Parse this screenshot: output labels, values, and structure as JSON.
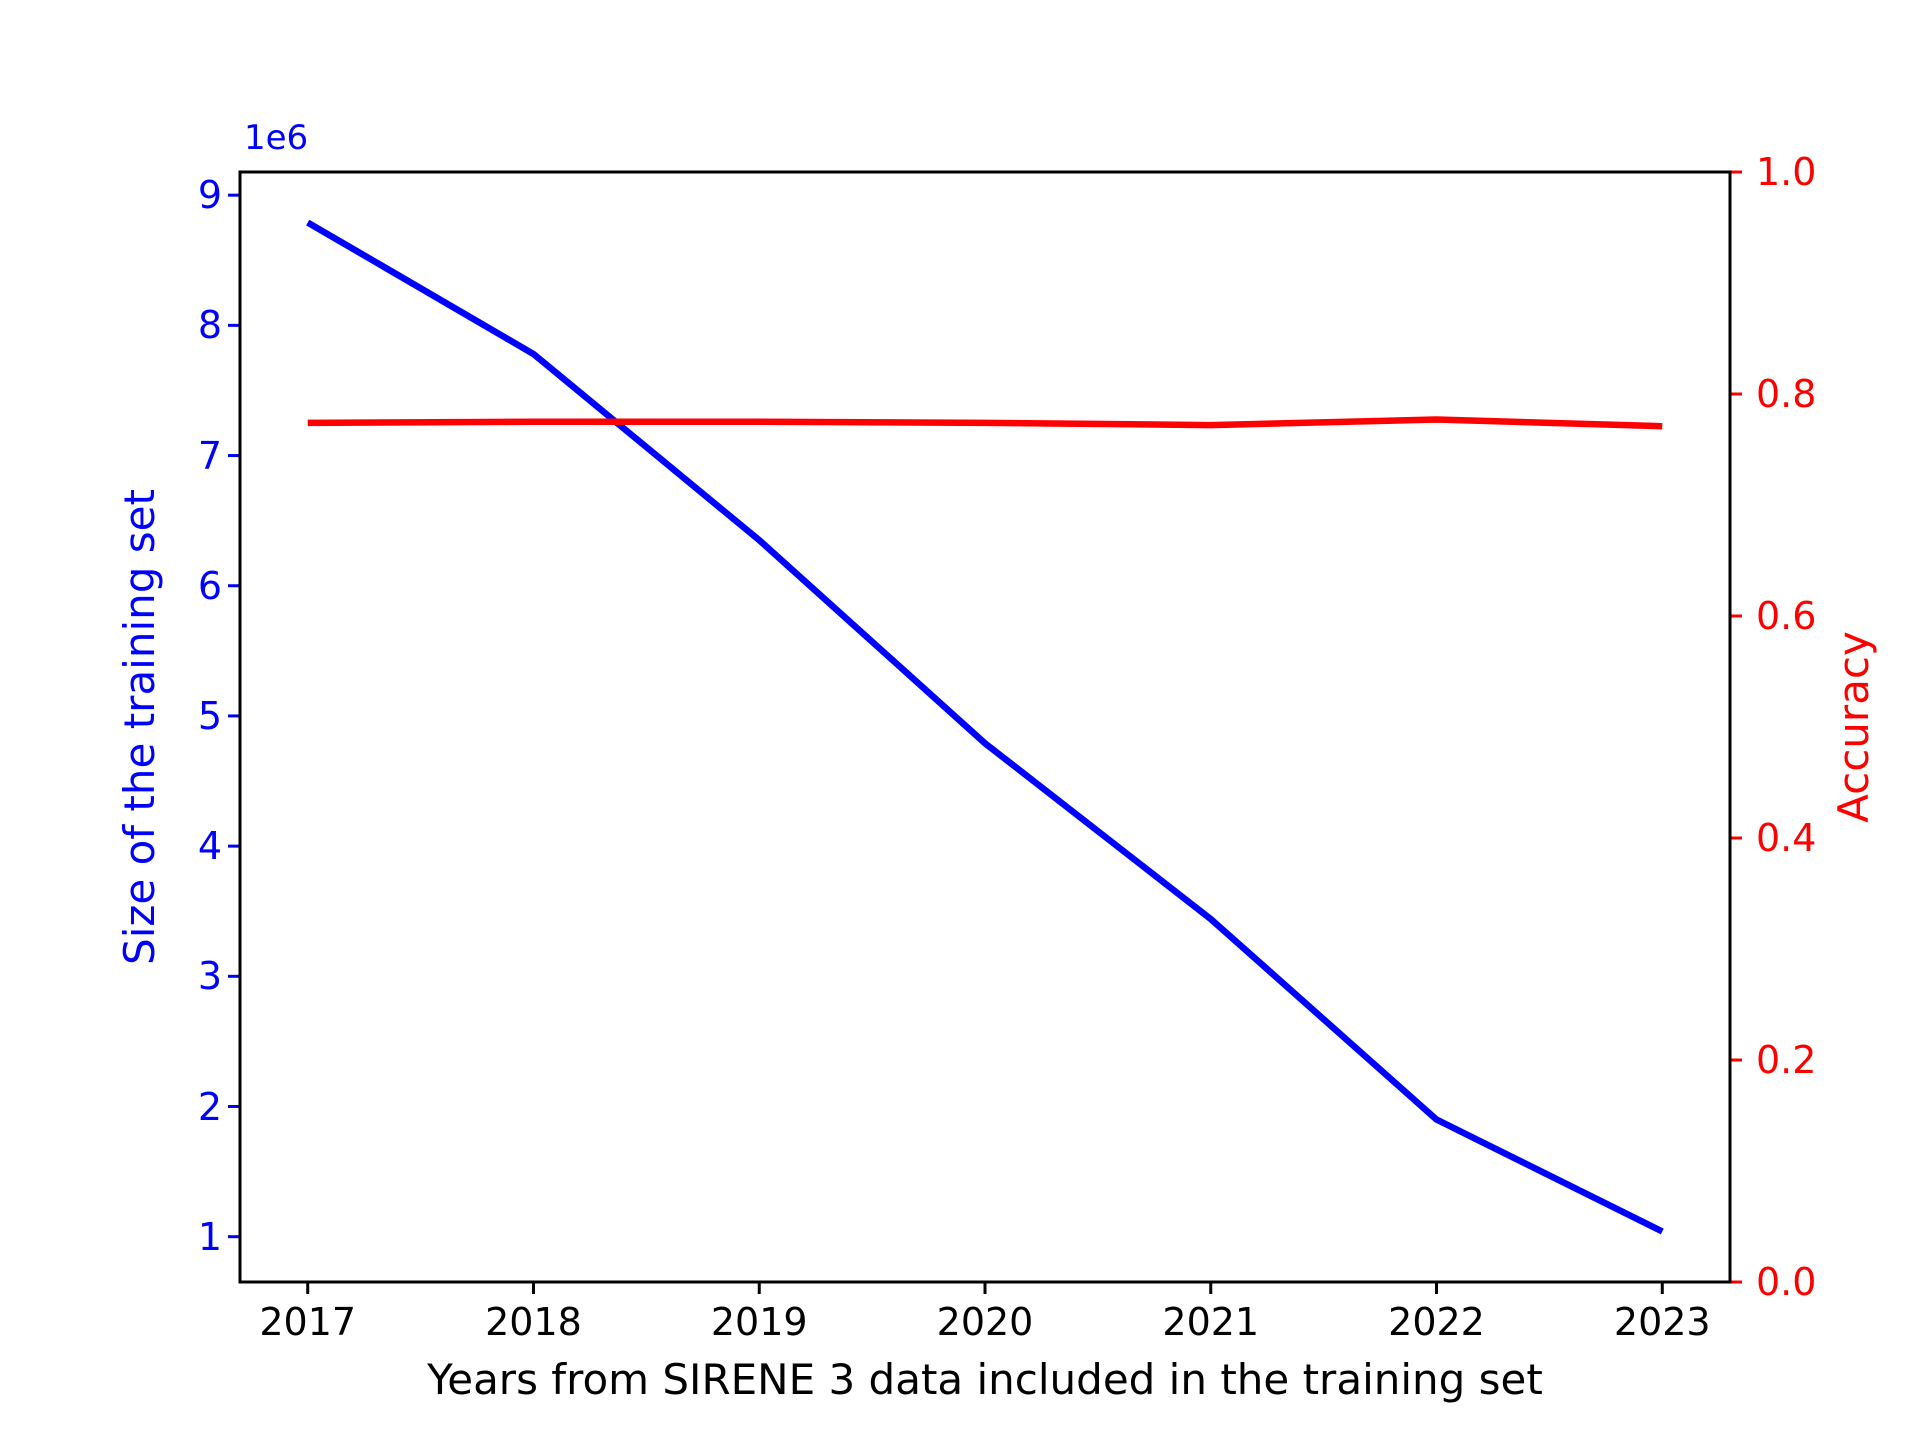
{
  "chart_data": {
    "type": "line",
    "x": [
      2017,
      2018,
      2019,
      2020,
      2021,
      2022,
      2023
    ],
    "series": [
      {
        "name": "Size of the training set",
        "axis": "left",
        "color": "#0000ff",
        "values": [
          8790000,
          7780000,
          6350000,
          4790000,
          3440000,
          1900000,
          1040000
        ]
      },
      {
        "name": "Accuracy",
        "axis": "right",
        "color": "#ff0000",
        "values": [
          0.774,
          0.775,
          0.775,
          0.774,
          0.772,
          0.777,
          0.771
        ]
      }
    ],
    "xlabel": "Years from SIRENE 3 data included in the training set",
    "ylabel_left": "Size of the training set",
    "ylabel_right": "Accuracy",
    "offset_text": "1e6",
    "x_ticks": {
      "values": [
        2017,
        2018,
        2019,
        2020,
        2021,
        2022,
        2023
      ],
      "labels": [
        "2017",
        "2018",
        "2019",
        "2020",
        "2021",
        "2022",
        "2023"
      ]
    },
    "y_ticks_left": {
      "values": [
        1000000,
        2000000,
        3000000,
        4000000,
        5000000,
        6000000,
        7000000,
        8000000,
        9000000
      ],
      "labels": [
        "1",
        "2",
        "3",
        "4",
        "5",
        "6",
        "7",
        "8",
        "9"
      ]
    },
    "y_ticks_right": {
      "values": [
        0.0,
        0.2,
        0.4,
        0.6,
        0.8,
        1.0
      ],
      "labels": [
        "0.0",
        "0.2",
        "0.4",
        "0.6",
        "0.8",
        "1.0"
      ]
    },
    "xlim": [
      2016.7,
      2023.3
    ],
    "ylim_left": [
      652000,
      9178000
    ],
    "ylim_right": [
      0.0,
      1.0
    ],
    "grid": false,
    "legend": null,
    "colors": {
      "blue": "#0000ff",
      "red": "#ff0000",
      "black": "#000000",
      "background": "#ffffff"
    }
  }
}
